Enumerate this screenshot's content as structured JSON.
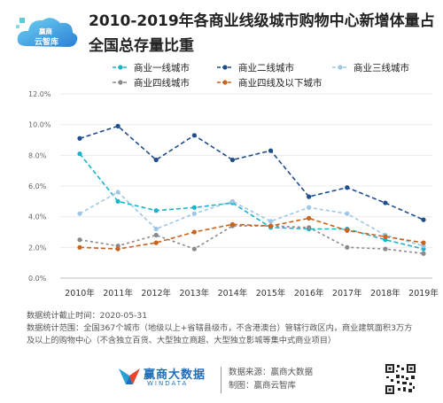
{
  "header": {
    "title": "2010-2019年各商业线级城市购物中心新增体量占全国总存量比重",
    "logo_line1": "赢商",
    "logo_line2": "云智库"
  },
  "chart_data": {
    "type": "line",
    "title": "2010-2019年各商业线级城市购物中心新增体量占全国总存量比重",
    "categories": [
      "2010年",
      "2011年",
      "2012年",
      "2013年",
      "2014年",
      "2015年",
      "2016年",
      "2017年",
      "2018年",
      "2019年"
    ],
    "y_ticks": [
      "0.0%",
      "2.0%",
      "4.0%",
      "6.0%",
      "8.0%",
      "10.0%",
      "12.0%"
    ],
    "ylim": [
      0,
      12
    ],
    "grid": true,
    "legend_position": "top",
    "series": [
      {
        "name": "商业一线城市",
        "color": "#1bb3c9",
        "values": [
          8.1,
          5.0,
          4.4,
          4.6,
          4.9,
          3.3,
          3.2,
          3.2,
          2.5,
          1.9
        ]
      },
      {
        "name": "商业二线城市",
        "color": "#1f4e8c",
        "values": [
          9.1,
          9.9,
          7.7,
          9.3,
          7.7,
          8.3,
          5.3,
          5.9,
          4.9,
          3.8
        ]
      },
      {
        "name": "商业三线城市",
        "color": "#9fc6e4",
        "values": [
          4.2,
          5.6,
          3.2,
          4.2,
          5.0,
          3.7,
          4.6,
          4.2,
          2.8,
          2.1
        ]
      },
      {
        "name": "商业四线城市",
        "color": "#8a8a8a",
        "values": [
          2.5,
          2.1,
          2.8,
          1.9,
          3.4,
          3.4,
          3.3,
          2.0,
          1.9,
          1.6
        ]
      },
      {
        "name": "商业四线及以下城市",
        "color": "#c8641e",
        "values": [
          2.0,
          1.9,
          2.3,
          3.0,
          3.5,
          3.4,
          3.9,
          3.1,
          2.7,
          2.3
        ]
      }
    ]
  },
  "notes": {
    "line1": "数据统计截止时间：2020-05-31",
    "line2": "数据统计范围：全国367个城市（地级以上+省辖县级市，不含港澳台）管辖行政区内，商业建筑面积3万方",
    "line3": "及以上的购物中心（不含独立百货、大型独立商超、大型独立影城等集中式商业项目）"
  },
  "footer": {
    "brand_name": "赢商大数据",
    "brand_sub": "WINDATA",
    "source": "数据来源：赢商大数据",
    "maker": "制图：赢商云智库"
  }
}
